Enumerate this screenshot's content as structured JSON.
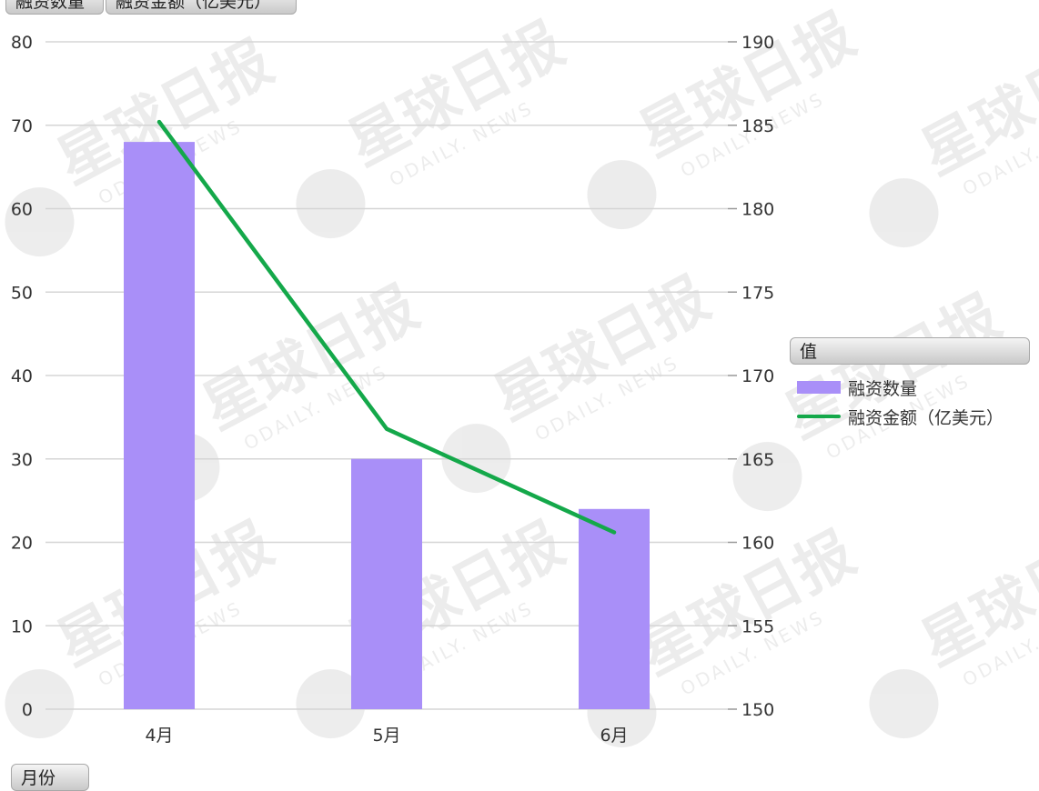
{
  "chart_data": {
    "type": "bar",
    "categories": [
      "4月",
      "5月",
      "6月"
    ],
    "series": [
      {
        "name": "融资数量",
        "type": "bar",
        "axis": "left",
        "values": [
          68,
          30,
          24
        ]
      },
      {
        "name": "融资金额（亿美元）",
        "type": "line",
        "axis": "right",
        "values": [
          185.2,
          166.8,
          160.6
        ]
      }
    ],
    "y_left": {
      "min": 0,
      "max": 80,
      "ticks": [
        0,
        10,
        20,
        30,
        40,
        50,
        60,
        70,
        80
      ]
    },
    "y_right": {
      "min": 150,
      "max": 190,
      "ticks": [
        150,
        155,
        160,
        165,
        170,
        175,
        180,
        185,
        190
      ]
    },
    "series_chips": [
      "融资数量",
      "融资金额（亿美元）"
    ],
    "xlabel": "月份",
    "legend_title": "值",
    "legend_position": "right",
    "grid": true
  },
  "colors": {
    "bar": "#a98ff8",
    "line": "#14a84a",
    "grid": "#d5d5d5",
    "axis_text": "#333333"
  },
  "watermark": {
    "brand": "星球日报",
    "tagline": "ODAILY. NEWS"
  }
}
